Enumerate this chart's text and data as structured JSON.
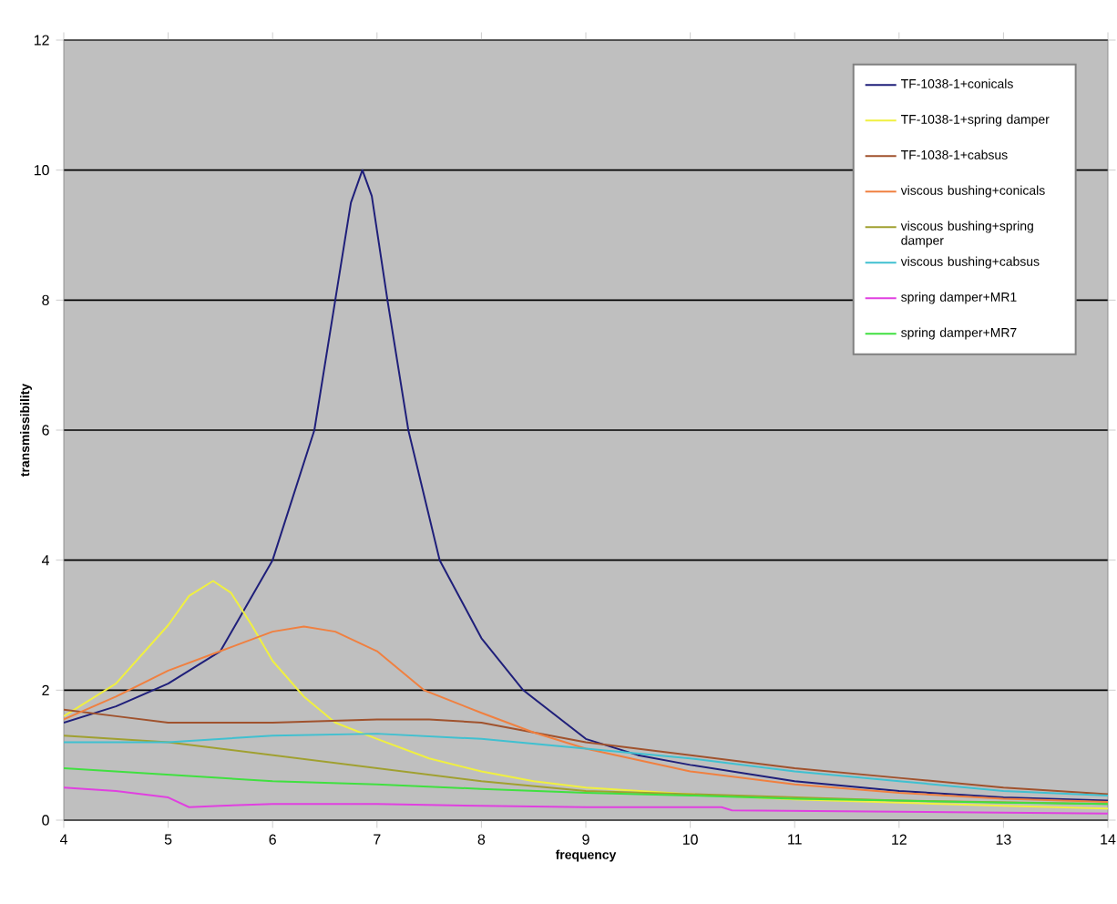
{
  "chart_data": {
    "type": "line",
    "xlabel": "frequency",
    "ylabel": "transmissibility",
    "xlim": [
      4,
      14
    ],
    "ylim": [
      0,
      12
    ],
    "xticks": [
      4,
      5,
      6,
      7,
      8,
      9,
      10,
      11,
      12,
      13,
      14
    ],
    "yticks": [
      0,
      2,
      4,
      6,
      8,
      10,
      12
    ],
    "grid": "y",
    "legend": "top right",
    "line_style": "solid",
    "marker": "none",
    "series": [
      {
        "name": "TF-1038-1+conicals",
        "color": "#1f1f7a",
        "x": [
          4,
          4.5,
          5,
          5.5,
          6,
          6.2,
          6.4,
          6.6,
          6.75,
          6.86,
          6.95,
          7.1,
          7.3,
          7.6,
          8,
          8.4,
          9,
          9.5,
          10,
          11,
          12,
          13,
          14
        ],
        "values": [
          1.5,
          1.75,
          2.1,
          2.6,
          4,
          5,
          6,
          8,
          9.5,
          10,
          9.6,
          8,
          6,
          4,
          2.8,
          2,
          1.25,
          1.0,
          0.85,
          0.6,
          0.45,
          0.35,
          0.3
        ]
      },
      {
        "name": "TF-1038-1+spring damper",
        "color": "#f0f040",
        "x": [
          4,
          4.5,
          5,
          5.2,
          5.43,
          5.6,
          5.8,
          6,
          6.3,
          6.6,
          7,
          7.5,
          8,
          8.5,
          9,
          10,
          11,
          12,
          13,
          14
        ],
        "values": [
          1.6,
          2.1,
          3.0,
          3.45,
          3.68,
          3.5,
          3.0,
          2.45,
          1.9,
          1.5,
          1.25,
          0.95,
          0.75,
          0.6,
          0.5,
          0.4,
          0.32,
          0.27,
          0.22,
          0.18
        ]
      },
      {
        "name": "TF-1038-1+cabsus",
        "color": "#a0522d",
        "x": [
          4,
          4.5,
          5,
          6,
          7,
          7.5,
          8,
          8.5,
          9,
          10,
          11,
          12,
          13,
          14
        ],
        "values": [
          1.7,
          1.6,
          1.5,
          1.5,
          1.55,
          1.55,
          1.5,
          1.35,
          1.2,
          1.0,
          0.8,
          0.65,
          0.5,
          0.4
        ]
      },
      {
        "name": "viscous bushing+conicals",
        "color": "#f08040",
        "x": [
          4,
          4.5,
          5,
          5.5,
          6,
          6.3,
          6.6,
          7,
          7.45,
          8,
          8.5,
          9,
          10,
          11,
          12,
          13,
          14
        ],
        "values": [
          1.55,
          1.9,
          2.3,
          2.6,
          2.9,
          2.98,
          2.9,
          2.6,
          2.0,
          1.65,
          1.35,
          1.1,
          0.75,
          0.55,
          0.42,
          0.33,
          0.28
        ]
      },
      {
        "name": "viscous bushing+spring damper",
        "color": "#a0a030",
        "x": [
          4,
          5,
          6,
          7,
          8,
          9,
          10,
          12,
          14
        ],
        "values": [
          1.3,
          1.2,
          1.0,
          0.8,
          0.6,
          0.45,
          0.4,
          0.3,
          0.25
        ]
      },
      {
        "name": "viscous bushing+cabsus",
        "color": "#40c0d0",
        "x": [
          4,
          5,
          6,
          7,
          8,
          9,
          10,
          11,
          12,
          13,
          14
        ],
        "values": [
          1.2,
          1.2,
          1.3,
          1.33,
          1.25,
          1.1,
          0.95,
          0.75,
          0.6,
          0.45,
          0.38
        ]
      },
      {
        "name": "spring damper+MR1",
        "color": "#e040e0",
        "x": [
          4,
          4.5,
          5,
          5.2,
          5.5,
          6,
          7,
          8,
          9,
          10.3,
          10.4,
          12,
          14
        ],
        "values": [
          0.5,
          0.45,
          0.35,
          0.2,
          0.22,
          0.25,
          0.25,
          0.22,
          0.2,
          0.2,
          0.15,
          0.13,
          0.1
        ]
      },
      {
        "name": "spring damper+MR7",
        "color": "#40e040",
        "x": [
          4,
          5,
          6,
          7,
          8,
          9,
          10,
          11,
          12,
          13,
          14
        ],
        "values": [
          0.8,
          0.7,
          0.6,
          0.55,
          0.48,
          0.42,
          0.38,
          0.33,
          0.3,
          0.27,
          0.25
        ]
      }
    ]
  }
}
